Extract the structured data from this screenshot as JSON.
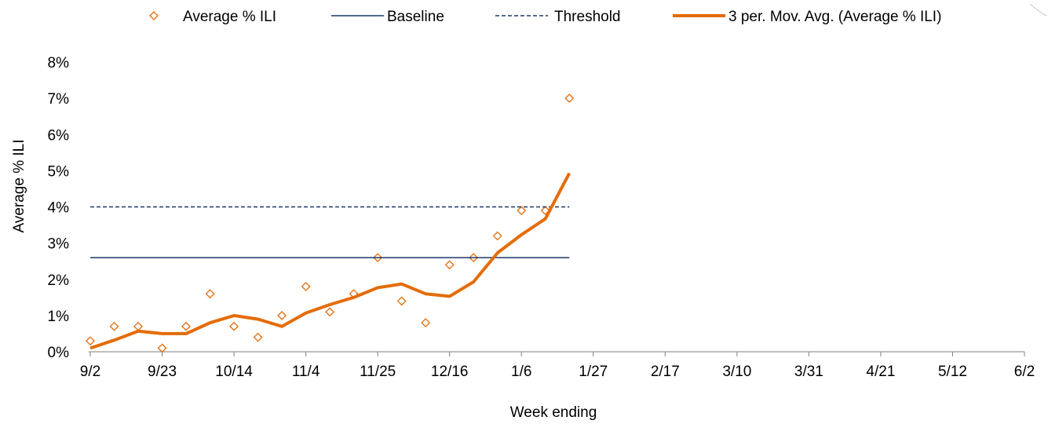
{
  "chart_data": {
    "type": "line",
    "xlabel": "Week ending",
    "ylabel": "Average % ILI",
    "ylim": [
      0,
      8
    ],
    "yticks": [
      "0%",
      "1%",
      "2%",
      "3%",
      "4%",
      "5%",
      "6%",
      "7%",
      "8%"
    ],
    "xticks": [
      "9/2",
      "9/23",
      "10/14",
      "11/4",
      "11/25",
      "12/16",
      "1/6",
      "1/27",
      "2/17",
      "3/10",
      "3/31",
      "4/21",
      "5/12",
      "6/2"
    ],
    "legend_position": "top",
    "grid": false,
    "x": [
      "9/2",
      "9/9",
      "9/16",
      "9/23",
      "9/30",
      "10/7",
      "10/14",
      "10/21",
      "10/28",
      "11/4",
      "11/11",
      "11/18",
      "11/25",
      "12/2",
      "12/9",
      "12/16",
      "12/23",
      "12/30",
      "1/6",
      "1/13",
      "1/20"
    ],
    "series": [
      {
        "name": "Average % ILI",
        "style": "diamond-markers",
        "color": "#E46C0A",
        "values": [
          0.3,
          0.7,
          0.7,
          0.1,
          0.7,
          1.6,
          0.7,
          0.4,
          1.0,
          1.8,
          1.1,
          1.6,
          2.6,
          1.4,
          0.8,
          2.4,
          2.6,
          3.2,
          3.9,
          3.9,
          7.0
        ]
      },
      {
        "name": "Baseline",
        "style": "solid-line",
        "color": "#1F3864",
        "values": [
          2.6,
          2.6,
          2.6,
          2.6,
          2.6,
          2.6,
          2.6,
          2.6,
          2.6,
          2.6,
          2.6,
          2.6,
          2.6,
          2.6,
          2.6,
          2.6,
          2.6,
          2.6,
          2.6,
          2.6,
          2.6
        ]
      },
      {
        "name": "Threshold",
        "style": "dashed-line",
        "color": "#1F3864",
        "values": [
          4.0,
          4.0,
          4.0,
          4.0,
          4.0,
          4.0,
          4.0,
          4.0,
          4.0,
          4.0,
          4.0,
          4.0,
          4.0,
          4.0,
          4.0,
          4.0,
          4.0,
          4.0,
          4.0,
          4.0,
          4.0
        ]
      },
      {
        "name": "3 per. Mov. Avg. (Average % ILI)",
        "style": "thick-line",
        "color": "#E46C0A",
        "values": [
          0.1,
          0.32,
          0.57,
          0.5,
          0.5,
          0.8,
          1.0,
          0.9,
          0.7,
          1.07,
          1.3,
          1.5,
          1.77,
          1.87,
          1.6,
          1.53,
          1.93,
          2.73,
          3.23,
          3.67,
          4.93
        ]
      }
    ]
  }
}
